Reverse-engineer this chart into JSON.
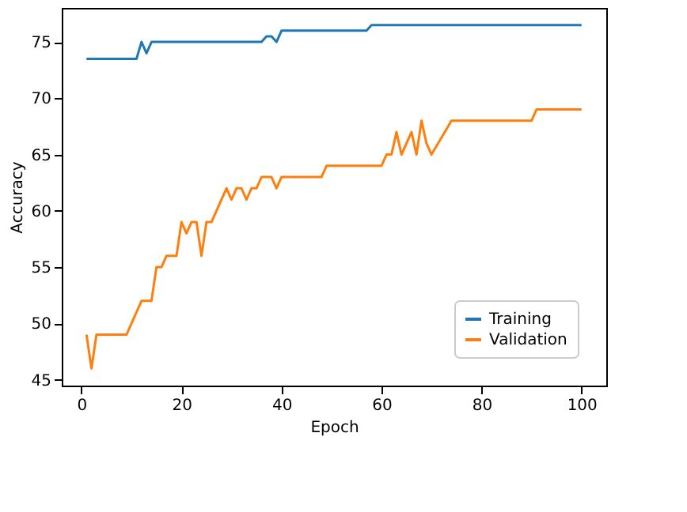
{
  "chart_data": {
    "type": "line",
    "xlabel": "Epoch",
    "ylabel": "Accuracy",
    "xlim": [
      -3.95,
      104.95
    ],
    "ylim": [
      44.475,
      78.025
    ],
    "xticks": [
      0,
      20,
      40,
      60,
      80,
      100
    ],
    "yticks": [
      45,
      50,
      55,
      60,
      65,
      70,
      75
    ],
    "grid": false,
    "legend": "bottom right",
    "line_style": "solid",
    "marker": "none",
    "series": [
      {
        "name": "Training",
        "color": "#1f77b4",
        "x": [
          1,
          11,
          12,
          13,
          14,
          36,
          37,
          38,
          39,
          40,
          57,
          58,
          100
        ],
        "values": [
          73.5,
          73.5,
          75,
          74,
          75,
          75,
          75.5,
          75.5,
          75,
          76,
          76,
          76.5,
          76.5
        ]
      },
      {
        "name": "Validation",
        "color": "#ff7f0e",
        "x": [
          1,
          2,
          3,
          9,
          12,
          14,
          15,
          16,
          17,
          19,
          20,
          21,
          22,
          23,
          24,
          25,
          26,
          29,
          30,
          31,
          32,
          33,
          34,
          35,
          36,
          38,
          39,
          40,
          48,
          49,
          60,
          61,
          62,
          63,
          64,
          66,
          67,
          68,
          69,
          70,
          74,
          90,
          91,
          100
        ],
        "values": [
          49,
          46,
          49,
          49,
          52,
          52,
          55,
          55,
          56,
          56,
          59,
          58,
          59,
          59,
          56,
          59,
          59,
          62,
          61,
          62,
          62,
          61,
          62,
          62,
          63,
          63,
          62,
          63,
          63,
          64,
          64,
          65,
          65,
          67,
          65,
          67,
          65,
          68,
          66,
          65,
          68,
          68,
          69,
          69
        ]
      }
    ]
  }
}
